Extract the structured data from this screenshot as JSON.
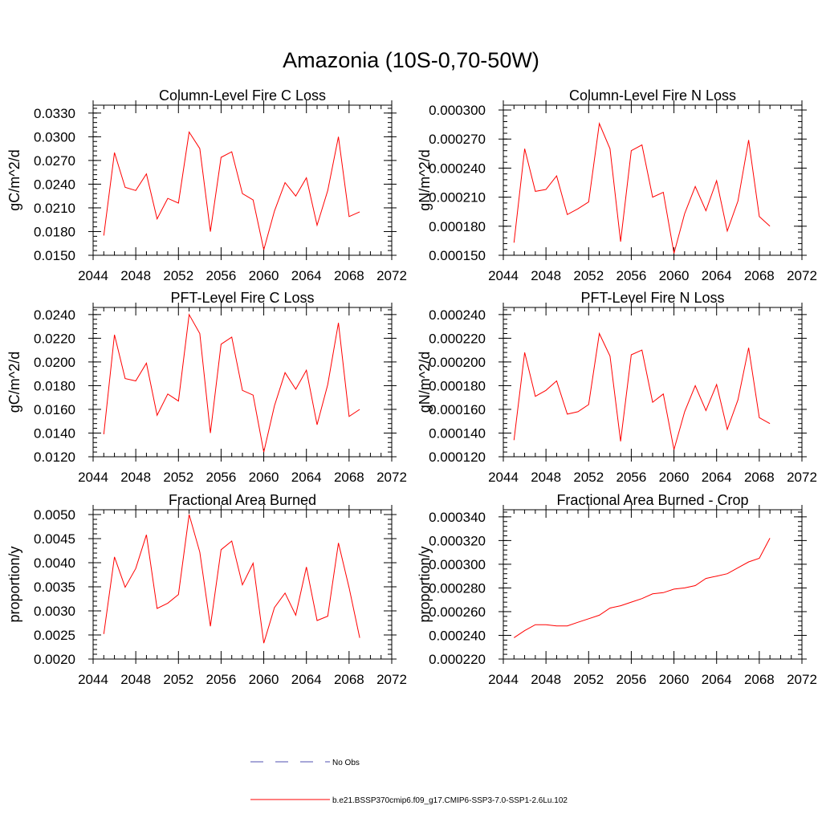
{
  "figure_title": "Amazonia (10S-0,70-50W)",
  "legend": [
    {
      "label": "No Obs",
      "color": "#4f4fb0",
      "style": "dashed"
    },
    {
      "label": "b.e21.BSSP370cmip6.f09_g17.CMIP6-SSP3-7.0-SSP1-2.6Lu.102",
      "color": "#ff0000",
      "style": "solid"
    }
  ],
  "chart_data": [
    {
      "type": "line",
      "title": "Column-Level Fire C Loss",
      "ylabel": "gC/m^2/d",
      "xlim": [
        2044,
        2072
      ],
      "ylim": [
        0.015,
        0.034
      ],
      "xticks": [
        "2044",
        "2048",
        "2052",
        "2056",
        "2060",
        "2064",
        "2068",
        "2072"
      ],
      "yticks": [
        "0.0150",
        "0.0180",
        "0.0210",
        "0.0240",
        "0.0270",
        "0.0300",
        "0.0330"
      ],
      "x": [
        2045,
        2046,
        2047,
        2048,
        2049,
        2050,
        2051,
        2052,
        2053,
        2054,
        2055,
        2056,
        2057,
        2058,
        2059,
        2060,
        2061,
        2062,
        2063,
        2064,
        2065,
        2066,
        2067,
        2068,
        2069
      ],
      "series": [
        {
          "color": "#ff0000",
          "values": [
            0.0175,
            0.028,
            0.0236,
            0.0232,
            0.0253,
            0.0196,
            0.0222,
            0.0216,
            0.0306,
            0.0285,
            0.018,
            0.0274,
            0.0281,
            0.0228,
            0.022,
            0.0157,
            0.0206,
            0.0242,
            0.0225,
            0.0248,
            0.0188,
            0.0232,
            0.03,
            0.0199,
            0.0205
          ]
        }
      ]
    },
    {
      "type": "line",
      "title": "Column-Level Fire N Loss",
      "ylabel": "gN/m^2/d",
      "xlim": [
        2044,
        2072
      ],
      "ylim": [
        0.00015,
        0.000305
      ],
      "xticks": [
        "2044",
        "2048",
        "2052",
        "2056",
        "2060",
        "2064",
        "2068",
        "2072"
      ],
      "yticks": [
        "0.000150",
        "0.000180",
        "0.000210",
        "0.000240",
        "0.000270",
        "0.000300"
      ],
      "x": [
        2045,
        2046,
        2047,
        2048,
        2049,
        2050,
        2051,
        2052,
        2053,
        2054,
        2055,
        2056,
        2057,
        2058,
        2059,
        2060,
        2061,
        2062,
        2063,
        2064,
        2065,
        2066,
        2067,
        2068,
        2069
      ],
      "series": [
        {
          "color": "#ff0000",
          "values": [
            0.000163,
            0.00026,
            0.000216,
            0.000218,
            0.000232,
            0.000192,
            0.000198,
            0.000205,
            0.000286,
            0.00026,
            0.000164,
            0.000258,
            0.000264,
            0.00021,
            0.000215,
            0.000152,
            0.000193,
            0.000221,
            0.000196,
            0.000227,
            0.000175,
            0.000206,
            0.000269,
            0.00019,
            0.00018
          ]
        }
      ]
    },
    {
      "type": "line",
      "title": "PFT-Level Fire C Loss",
      "ylabel": "gC/m^2/d",
      "xlim": [
        2044,
        2072
      ],
      "ylim": [
        0.012,
        0.0246
      ],
      "xticks": [
        "2044",
        "2048",
        "2052",
        "2056",
        "2060",
        "2064",
        "2068",
        "2072"
      ],
      "yticks": [
        "0.0120",
        "0.0140",
        "0.0160",
        "0.0180",
        "0.0200",
        "0.0220",
        "0.0240"
      ],
      "x": [
        2045,
        2046,
        2047,
        2048,
        2049,
        2050,
        2051,
        2052,
        2053,
        2054,
        2055,
        2056,
        2057,
        2058,
        2059,
        2060,
        2061,
        2062,
        2063,
        2064,
        2065,
        2066,
        2067,
        2068,
        2069
      ],
      "series": [
        {
          "color": "#ff0000",
          "values": [
            0.0139,
            0.0223,
            0.0186,
            0.0184,
            0.0199,
            0.0155,
            0.0173,
            0.0167,
            0.024,
            0.0224,
            0.014,
            0.0215,
            0.0221,
            0.0176,
            0.0172,
            0.0124,
            0.0163,
            0.0191,
            0.0177,
            0.0193,
            0.0147,
            0.0181,
            0.0233,
            0.0154,
            0.016
          ]
        }
      ]
    },
    {
      "type": "line",
      "title": "PFT-Level Fire N Loss",
      "ylabel": "gN/m^2/d",
      "xlim": [
        2044,
        2072
      ],
      "ylim": [
        0.00012,
        0.000246
      ],
      "xticks": [
        "2044",
        "2048",
        "2052",
        "2056",
        "2060",
        "2064",
        "2068",
        "2072"
      ],
      "yticks": [
        "0.000120",
        "0.000140",
        "0.000160",
        "0.000180",
        "0.000200",
        "0.000220",
        "0.000240"
      ],
      "x": [
        2045,
        2046,
        2047,
        2048,
        2049,
        2050,
        2051,
        2052,
        2053,
        2054,
        2055,
        2056,
        2057,
        2058,
        2059,
        2060,
        2061,
        2062,
        2063,
        2064,
        2065,
        2066,
        2067,
        2068,
        2069
      ],
      "series": [
        {
          "color": "#ff0000",
          "values": [
            0.000134,
            0.000208,
            0.000171,
            0.000176,
            0.000184,
            0.000156,
            0.000158,
            0.000164,
            0.000224,
            0.000205,
            0.000133,
            0.000206,
            0.00021,
            0.000166,
            0.000173,
            0.000126,
            0.000158,
            0.00018,
            0.000159,
            0.000181,
            0.000143,
            0.000168,
            0.000212,
            0.000153,
            0.000148
          ]
        }
      ]
    },
    {
      "type": "line",
      "title": "Fractional Area Burned",
      "ylabel": "proportion/y",
      "xlim": [
        2044,
        2072
      ],
      "ylim": [
        0.002,
        0.0051
      ],
      "xticks": [
        "2044",
        "2048",
        "2052",
        "2056",
        "2060",
        "2064",
        "2068",
        "2072"
      ],
      "yticks": [
        "0.0020",
        "0.0025",
        "0.0030",
        "0.0035",
        "0.0040",
        "0.0045",
        "0.0050"
      ],
      "x": [
        2045,
        2046,
        2047,
        2048,
        2049,
        2050,
        2051,
        2052,
        2053,
        2054,
        2055,
        2056,
        2057,
        2058,
        2059,
        2060,
        2061,
        2062,
        2063,
        2064,
        2065,
        2066,
        2067,
        2068,
        2069
      ],
      "series": [
        {
          "color": "#ff0000",
          "values": [
            0.00252,
            0.00412,
            0.00349,
            0.00388,
            0.00458,
            0.00305,
            0.00316,
            0.00334,
            0.005,
            0.00422,
            0.00268,
            0.00427,
            0.00445,
            0.00354,
            0.00399,
            0.00233,
            0.00307,
            0.00337,
            0.00291,
            0.00391,
            0.0028,
            0.00289,
            0.00441,
            0.00348,
            0.00244
          ]
        }
      ]
    },
    {
      "type": "line",
      "title": "Fractional Area Burned - Crop",
      "ylabel": "proportion/y",
      "xlim": [
        2044,
        2072
      ],
      "ylim": [
        0.00022,
        0.000346
      ],
      "xticks": [
        "2044",
        "2048",
        "2052",
        "2056",
        "2060",
        "2064",
        "2068",
        "2072"
      ],
      "yticks": [
        "0.000220",
        "0.000240",
        "0.000260",
        "0.000280",
        "0.000300",
        "0.000320",
        "0.000340"
      ],
      "x": [
        2045,
        2046,
        2047,
        2048,
        2049,
        2050,
        2051,
        2052,
        2053,
        2054,
        2055,
        2056,
        2057,
        2058,
        2059,
        2060,
        2061,
        2062,
        2063,
        2064,
        2065,
        2066,
        2067,
        2068,
        2069
      ],
      "series": [
        {
          "color": "#ff0000",
          "values": [
            0.000238,
            0.000244,
            0.000249,
            0.000249,
            0.000248,
            0.000248,
            0.000251,
            0.000254,
            0.000257,
            0.000263,
            0.000265,
            0.000268,
            0.000271,
            0.000275,
            0.000276,
            0.000279,
            0.00028,
            0.000282,
            0.000288,
            0.00029,
            0.000292,
            0.000297,
            0.000302,
            0.000305,
            0.000322
          ]
        }
      ]
    }
  ]
}
